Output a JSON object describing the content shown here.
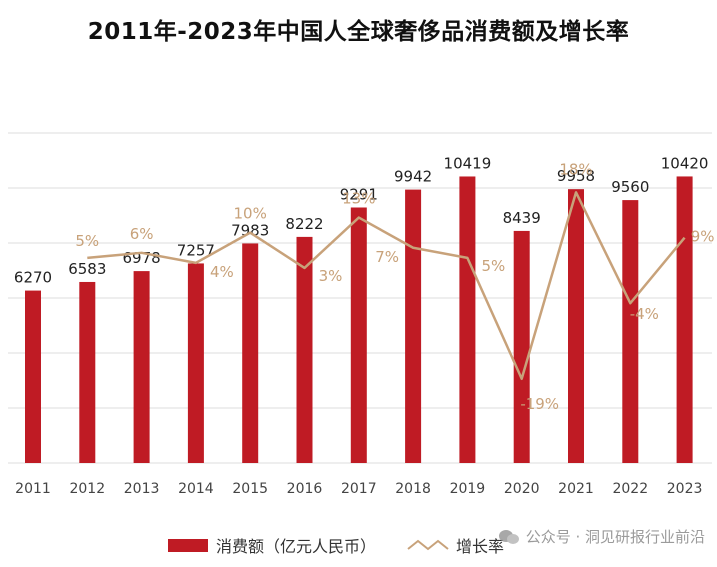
{
  "chart_data": {
    "type": "bar",
    "title": "2011年-2023年中国人全球奢侈品消费额及增长率",
    "categories": [
      "2011",
      "2012",
      "2013",
      "2014",
      "2015",
      "2016",
      "2017",
      "2018",
      "2019",
      "2020",
      "2021",
      "2022",
      "2023"
    ],
    "series": [
      {
        "name": "消费额（亿元人民币）",
        "type": "bar",
        "values": [
          6270,
          6583,
          6978,
          7257,
          7983,
          8222,
          9291,
          9942,
          10419,
          8439,
          9958,
          9560,
          10420
        ],
        "labels": [
          "6270",
          "6583",
          "6978",
          "7257",
          "7983",
          "8222",
          "9291",
          "9942",
          "10419",
          "8439",
          "9958",
          "9560",
          "10420"
        ]
      },
      {
        "name": "增长率",
        "type": "line",
        "values": [
          null,
          5,
          6,
          4,
          10,
          3,
          13,
          7,
          5,
          -19,
          18,
          -4,
          9
        ],
        "labels": [
          "",
          "5%",
          "6%",
          "4%",
          "10%",
          "3%",
          "13%",
          "7%",
          "5%",
          "-19%",
          "18%",
          "-4%",
          "9%"
        ]
      }
    ],
    "ylim": [
      0,
      12000
    ],
    "ylim_rate": [
      -25,
      27
    ],
    "grid": true,
    "xlabel": "",
    "ylabel": ""
  },
  "colors": {
    "bar": "#bf1b24",
    "line": "#c8a27a",
    "grid": "#dcdcdc",
    "bar_label": "#222222"
  },
  "legend": {
    "bar_label": "消费额（亿元人民币）",
    "line_label": "增长率"
  },
  "watermark": {
    "text": "公众号 · 洞见研报行业前沿",
    "icon": "wechat-icon"
  }
}
